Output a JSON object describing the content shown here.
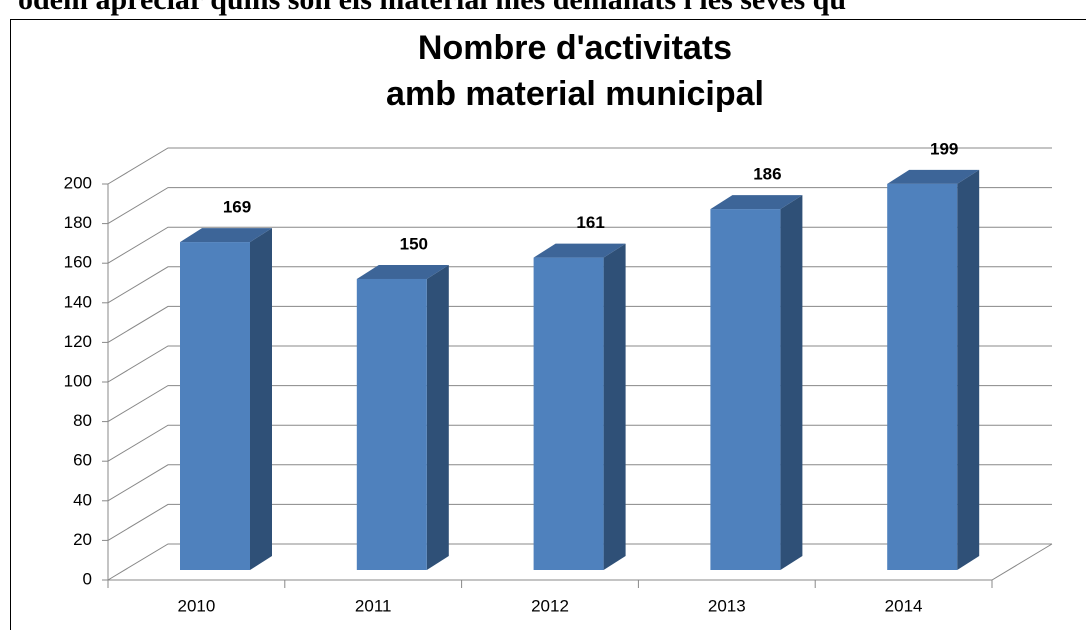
{
  "text_above": "odem apreciar quins són els material més demanats i les seves qu",
  "chart_data": {
    "type": "bar3d",
    "title": [
      "Nombre d'activitats",
      "amb material municipal"
    ],
    "categories": [
      "2010",
      "2011",
      "2012",
      "2013",
      "2014"
    ],
    "values": [
      169,
      150,
      161,
      186,
      199
    ],
    "color": "#4f81bd",
    "ylim": [
      0,
      200
    ],
    "yticks": [
      0,
      20,
      40,
      60,
      80,
      100,
      120,
      140,
      160,
      180,
      200
    ],
    "grid": true
  }
}
